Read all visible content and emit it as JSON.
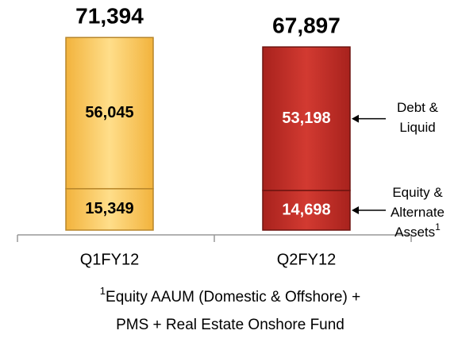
{
  "chart_data": {
    "type": "stacked_bar",
    "categories": [
      "Q1FY12",
      "Q2FY12"
    ],
    "colors": [
      "#FFCC5C",
      "#C3302A"
    ],
    "label_colors": [
      "#000000",
      "#FFFFFF"
    ],
    "series": [
      {
        "name": [
          "Equity &",
          "Alternate",
          "Assets"
        ],
        "note": "1",
        "values": [
          15349,
          14698
        ],
        "value_labels": [
          "15,349",
          "14,698"
        ]
      },
      {
        "name": [
          "Debt &",
          "Liquid"
        ],
        "values": [
          56045,
          53198
        ],
        "value_labels": [
          "56,045",
          "53,198"
        ]
      }
    ],
    "totals": [
      71394,
      67897
    ],
    "total_labels": [
      "71,394",
      "67,897"
    ],
    "footnote": {
      "marker": "1",
      "lines": [
        "Equity AAUM (Domestic & Offshore) +",
        "PMS + Real Estate Onshore Fund"
      ]
    }
  }
}
